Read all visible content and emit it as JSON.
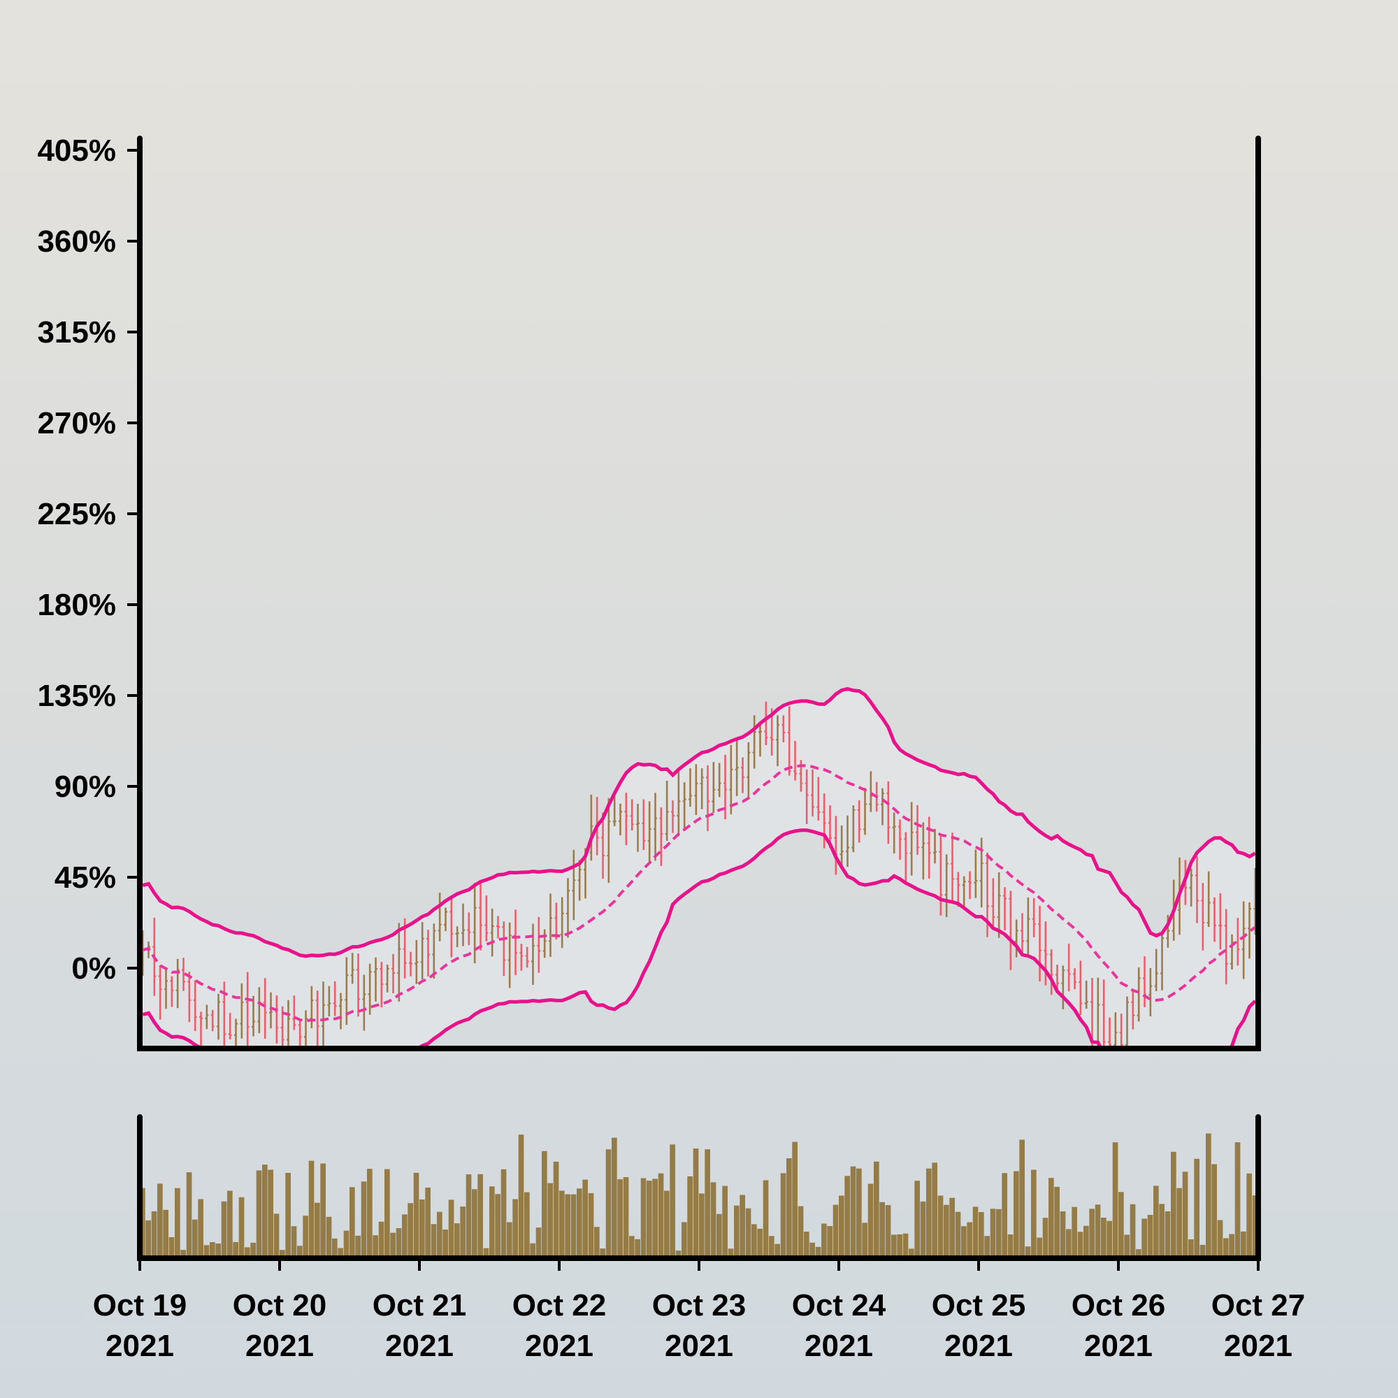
{
  "chart_data": {
    "type": "ohlc",
    "title": "",
    "xlabel": "",
    "ylabel": "",
    "price_panel": {
      "ylim": [
        -45,
        410
      ],
      "y_ticks": [
        0,
        45,
        90,
        135,
        180,
        225,
        270,
        315,
        360,
        405
      ],
      "y_tick_labels": [
        "0%",
        "45%",
        "90%",
        "135%",
        "180%",
        "225%",
        "270%",
        "315%",
        "360%",
        "405%"
      ],
      "y_tick_suffix": "%",
      "grid": false
    },
    "x_range": [
      "2021-10-19",
      "2021-10-27"
    ],
    "x_ticks": [
      "2021-10-19",
      "2021-10-20",
      "2021-10-21",
      "2021-10-22",
      "2021-10-23",
      "2021-10-24",
      "2021-10-25",
      "2021-10-26",
      "2021-10-27"
    ],
    "x_tick_labels": [
      [
        "Oct 19",
        "2021"
      ],
      [
        "Oct 20",
        "2021"
      ],
      [
        "Oct 21",
        "2021"
      ],
      [
        "Oct 22",
        "2021"
      ],
      [
        "Oct 23",
        "2021"
      ],
      [
        "Oct 24",
        "2021"
      ],
      [
        "Oct 25",
        "2021"
      ],
      [
        "Oct 26",
        "2021"
      ],
      [
        "Oct 27",
        "2021"
      ]
    ],
    "interval_hours": 1,
    "bars_count": 192,
    "close_path_knots": [
      [
        "2021-10-19",
        5
      ],
      [
        "2021-10-19 12:00",
        -20
      ],
      [
        "2021-10-20",
        -30
      ],
      [
        "2021-10-20 12:00",
        -10
      ],
      [
        "2021-10-21",
        5
      ],
      [
        "2021-10-21 06:00",
        25
      ],
      [
        "2021-10-21 12:00",
        25
      ],
      [
        "2021-10-21 18:00",
        0
      ],
      [
        "2021-10-22",
        30
      ],
      [
        "2021-10-22 06:00",
        65
      ],
      [
        "2021-10-22 12:00",
        70
      ],
      [
        "2021-10-22 18:00",
        75
      ],
      [
        "2021-10-23",
        90
      ],
      [
        "2021-10-23 06:00",
        100
      ],
      [
        "2021-10-23 12:00",
        115
      ],
      [
        "2021-10-23 18:00",
        95
      ],
      [
        "2021-10-24",
        60
      ],
      [
        "2021-10-24 06:00",
        90
      ],
      [
        "2021-10-24 12:00",
        60
      ],
      [
        "2021-10-24 18:00",
        45
      ],
      [
        "2021-10-25",
        45
      ],
      [
        "2021-10-25 06:00",
        20
      ],
      [
        "2021-10-25 12:00",
        5
      ],
      [
        "2021-10-25 18:00",
        -25
      ],
      [
        "2021-10-26",
        -30
      ],
      [
        "2021-10-26 06:00",
        0
      ],
      [
        "2021-10-26 12:00",
        50
      ],
      [
        "2021-10-26 18:00",
        10
      ],
      [
        "2021-10-27",
        30
      ]
    ],
    "series": [
      {
        "name": "",
        "kind": "ohlc",
        "up_color": "#9c7c4c",
        "down_color": "#f05c6a"
      },
      {
        "name": "",
        "kind": "moving-average",
        "window": 20,
        "color": "#e8369a",
        "dashed": true
      },
      {
        "name": "",
        "kind": "band-upper",
        "k": 2,
        "color": "#e8128a"
      },
      {
        "name": "",
        "kind": "band-lower",
        "k": 2,
        "color": "#e8128a"
      }
    ],
    "band_fill": "#e2e4e6",
    "volume_panel": {
      "color": "#957b46",
      "min": 0.05,
      "max": 0.96
    },
    "legend": "none"
  }
}
